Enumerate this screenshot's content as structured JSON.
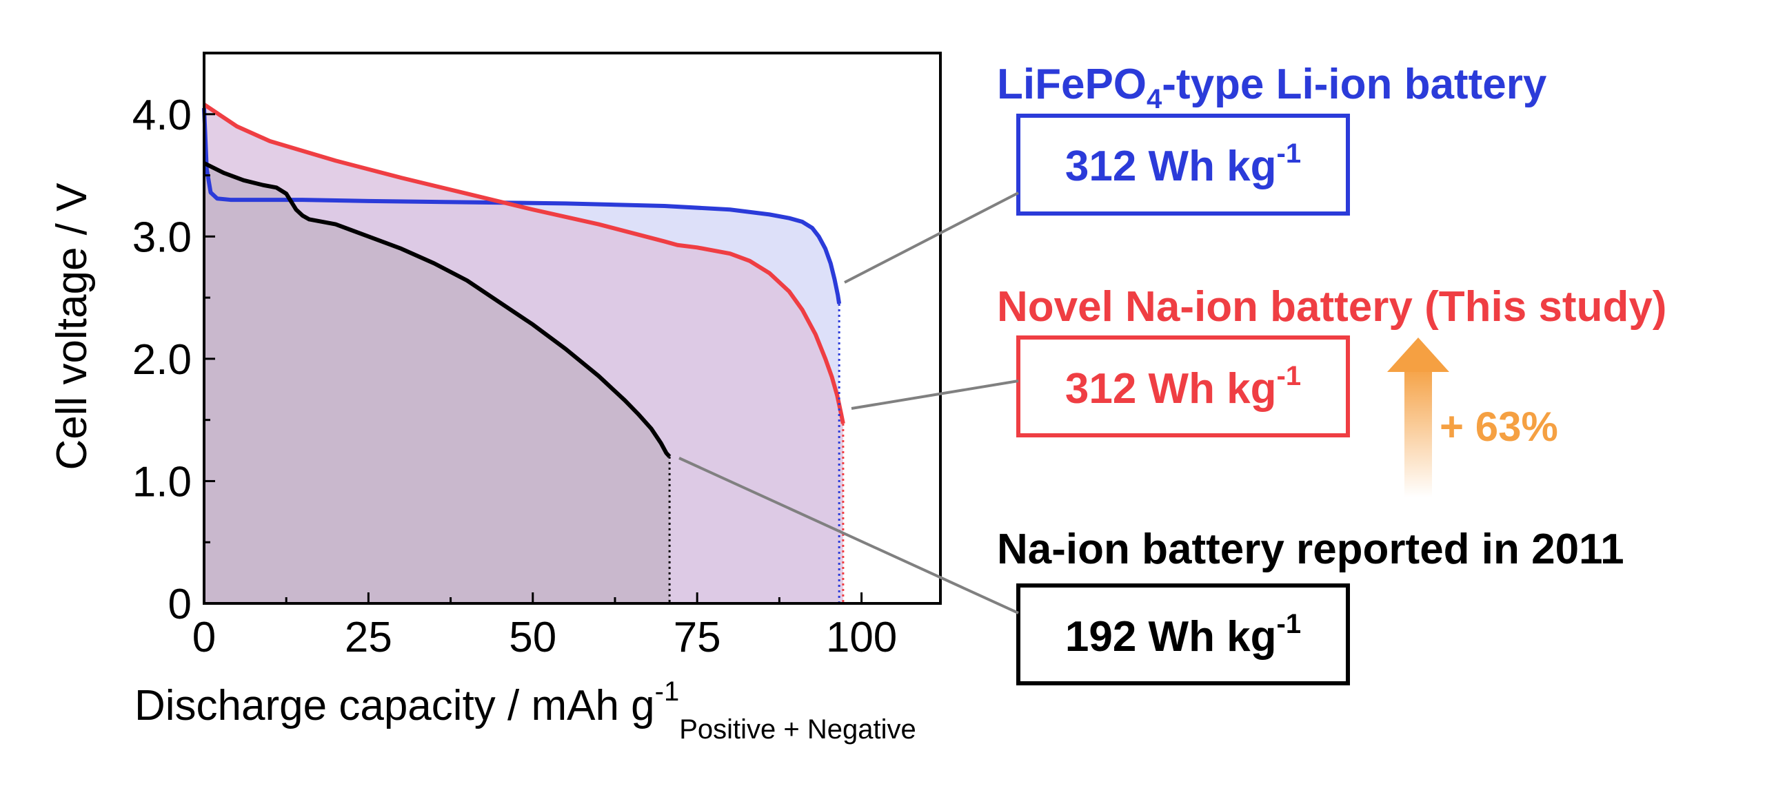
{
  "chart_data": {
    "type": "line",
    "xlabel": "Discharge capacity / mAh g",
    "xlabel_sup": "-1",
    "xlabel_sub": "Positive + Negative",
    "ylabel": "Cell voltage / V",
    "xlim": [
      0,
      112
    ],
    "ylim": [
      0,
      4.5
    ],
    "xticks": [
      0,
      25,
      50,
      75,
      100
    ],
    "xtick_labels": [
      "0",
      "25",
      "50",
      "75",
      "100"
    ],
    "yticks": [
      0,
      1,
      2,
      3,
      4
    ],
    "ytick_labels": [
      "0",
      "1.0",
      "2.0",
      "3.0",
      "4.0"
    ],
    "grid": false,
    "series": [
      {
        "key": "li",
        "name_main": "LiFePO",
        "name_sub": "4",
        "name_rest": "-type Li-ion battery",
        "color": "#2b3bd9",
        "fill": "#d7dbf8",
        "energy": "312 Wh kg",
        "energy_sup": "-1",
        "x": [
          0,
          0.4,
          1,
          2,
          4,
          8,
          15,
          25,
          40,
          55,
          70,
          80,
          86,
          89,
          91,
          92.5,
          93.5,
          94.5,
          95.3,
          95.9,
          96.4,
          96.6
        ],
        "y": [
          4.05,
          3.55,
          3.36,
          3.31,
          3.3,
          3.3,
          3.3,
          3.29,
          3.28,
          3.27,
          3.25,
          3.22,
          3.18,
          3.15,
          3.12,
          3.07,
          3.0,
          2.9,
          2.78,
          2.65,
          2.52,
          2.45
        ]
      },
      {
        "key": "na_new",
        "name_main": "Novel Na-ion battery (This study)",
        "color": "#ef3e43",
        "fill": "#ddc6e2",
        "energy": "312 Wh kg",
        "energy_sup": "-1",
        "x": [
          0,
          5,
          10,
          20,
          30,
          40,
          50,
          60,
          70,
          72,
          75,
          80,
          83,
          86,
          89,
          91,
          93,
          94.5,
          95.5,
          96.3,
          96.9,
          97.2
        ],
        "y": [
          4.08,
          3.9,
          3.78,
          3.62,
          3.48,
          3.35,
          3.22,
          3.1,
          2.96,
          2.93,
          2.91,
          2.86,
          2.8,
          2.7,
          2.55,
          2.4,
          2.2,
          2.0,
          1.85,
          1.7,
          1.55,
          1.47
        ]
      },
      {
        "key": "na_old",
        "name_main": "Na-ion battery reported in 2011",
        "color": "#000000",
        "fill": "#c5b5c9",
        "energy": "192 Wh kg",
        "energy_sup": "-1",
        "x": [
          0,
          3,
          6,
          9,
          11,
          12.5,
          14,
          15,
          16,
          20,
          25,
          30,
          35,
          40,
          45,
          50,
          55,
          60,
          64,
          66,
          68,
          69.5,
          70.3,
          70.8
        ],
        "y": [
          3.6,
          3.52,
          3.46,
          3.42,
          3.4,
          3.35,
          3.22,
          3.17,
          3.14,
          3.1,
          3.0,
          2.9,
          2.78,
          2.64,
          2.46,
          2.28,
          2.08,
          1.86,
          1.66,
          1.55,
          1.43,
          1.31,
          1.23,
          1.2
        ]
      }
    ],
    "annotation": {
      "label": "+ 63%",
      "color": "#f5a042"
    }
  }
}
